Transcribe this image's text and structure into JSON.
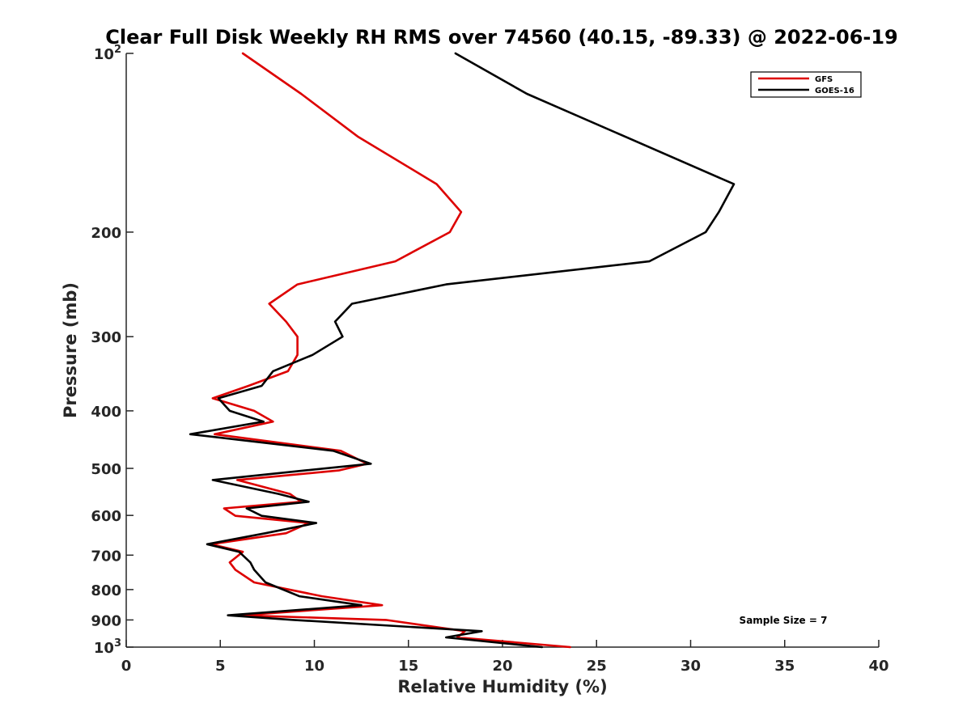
{
  "chart_data": {
    "type": "line",
    "title": "Clear Full Disk Weekly RH RMS over 74560 (40.15, -89.33) @ 2022-06-19",
    "xlabel": "Relative Humidity (%)",
    "ylabel": "Pressure (mb)",
    "xlim": [
      0,
      40
    ],
    "ylim": [
      100,
      1000
    ],
    "y_scale": "log",
    "y_reversed": true,
    "grid": false,
    "legend_position": "top-right",
    "x_ticks": [
      "0",
      "5",
      "10",
      "15",
      "20",
      "25",
      "30",
      "35",
      "40"
    ],
    "x_tick_values": [
      0,
      5,
      10,
      15,
      20,
      25,
      30,
      35,
      40
    ],
    "y_ticks": [
      {
        "value": 100,
        "base": "10",
        "exp": "2"
      },
      {
        "value": 200,
        "base": "200",
        "exp": ""
      },
      {
        "value": 300,
        "base": "300",
        "exp": ""
      },
      {
        "value": 400,
        "base": "400",
        "exp": ""
      },
      {
        "value": 500,
        "base": "500",
        "exp": ""
      },
      {
        "value": 600,
        "base": "600",
        "exp": ""
      },
      {
        "value": 700,
        "base": "700",
        "exp": ""
      },
      {
        "value": 800,
        "base": "800",
        "exp": ""
      },
      {
        "value": 900,
        "base": "900",
        "exp": ""
      },
      {
        "value": 1000,
        "base": "10",
        "exp": "3"
      }
    ],
    "annotation": "Sample Size = 7",
    "series": [
      {
        "name": "GFS",
        "color": "#dd0000",
        "points": [
          [
            6.2,
            100
          ],
          [
            9.3,
            117
          ],
          [
            12.3,
            138
          ],
          [
            16.5,
            166
          ],
          [
            17.8,
            185
          ],
          [
            17.2,
            200
          ],
          [
            14.3,
            224
          ],
          [
            9.1,
            245
          ],
          [
            7.6,
            264
          ],
          [
            8.5,
            283
          ],
          [
            9.1,
            300
          ],
          [
            9.1,
            322
          ],
          [
            8.6,
            343
          ],
          [
            6.5,
            363
          ],
          [
            4.6,
            381
          ],
          [
            6.8,
            400
          ],
          [
            7.8,
            417
          ],
          [
            4.7,
            438
          ],
          [
            11.4,
            467
          ],
          [
            12.8,
            491
          ],
          [
            11.3,
            504
          ],
          [
            5.9,
            523
          ],
          [
            8.7,
            552
          ],
          [
            9.3,
            569
          ],
          [
            5.2,
            584
          ],
          [
            5.8,
            601
          ],
          [
            9.7,
            618
          ],
          [
            8.5,
            643
          ],
          [
            4.5,
            671
          ],
          [
            6.2,
            691
          ],
          [
            5.5,
            720
          ],
          [
            5.8,
            741
          ],
          [
            6.8,
            778
          ],
          [
            10.4,
            821
          ],
          [
            13.6,
            850
          ],
          [
            6.1,
            884
          ],
          [
            13.8,
            900
          ],
          [
            18.0,
            940
          ],
          [
            17.6,
            963
          ],
          [
            23.6,
            1000
          ]
        ]
      },
      {
        "name": "GOES-16",
        "color": "#000000",
        "points": [
          [
            17.5,
            100
          ],
          [
            21.3,
            117
          ],
          [
            26.5,
            138
          ],
          [
            32.3,
            166
          ],
          [
            31.5,
            185
          ],
          [
            30.8,
            200
          ],
          [
            27.8,
            224
          ],
          [
            17.0,
            245
          ],
          [
            12.0,
            264
          ],
          [
            11.1,
            283
          ],
          [
            11.5,
            300
          ],
          [
            9.9,
            322
          ],
          [
            7.8,
            343
          ],
          [
            7.2,
            363
          ],
          [
            4.9,
            381
          ],
          [
            5.5,
            400
          ],
          [
            7.3,
            417
          ],
          [
            3.4,
            438
          ],
          [
            11.0,
            467
          ],
          [
            13.0,
            491
          ],
          [
            9.5,
            504
          ],
          [
            4.6,
            523
          ],
          [
            8.1,
            552
          ],
          [
            9.7,
            569
          ],
          [
            6.4,
            584
          ],
          [
            7.2,
            601
          ],
          [
            10.1,
            618
          ],
          [
            7.4,
            643
          ],
          [
            4.3,
            671
          ],
          [
            6.0,
            691
          ],
          [
            6.6,
            720
          ],
          [
            6.8,
            741
          ],
          [
            7.4,
            778
          ],
          [
            9.2,
            821
          ],
          [
            12.5,
            850
          ],
          [
            5.4,
            884
          ],
          [
            8.9,
            900
          ],
          [
            18.9,
            940
          ],
          [
            17.0,
            963
          ],
          [
            22.1,
            1000
          ]
        ]
      }
    ]
  }
}
